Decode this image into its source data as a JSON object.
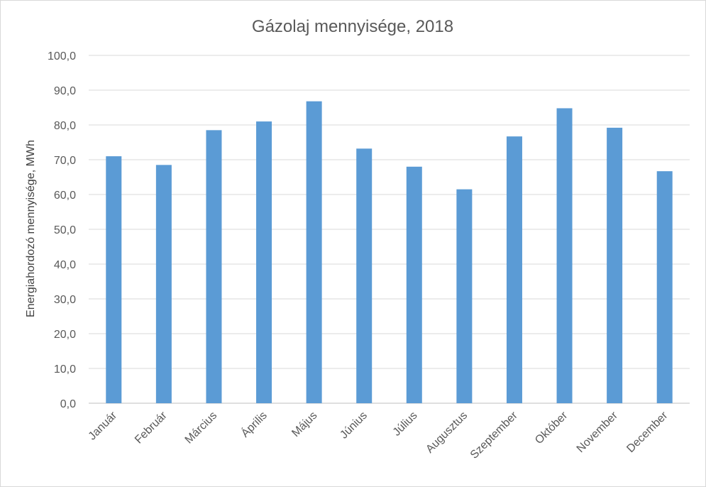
{
  "chart_data": {
    "type": "bar",
    "title": "Gázolaj mennyisége, 2018",
    "xlabel": "",
    "ylabel": "Energiahordozó mennyisége, MWh",
    "ylim": [
      0,
      100
    ],
    "yticks": [
      "0,0",
      "10,0",
      "20,0",
      "30,0",
      "40,0",
      "50,0",
      "60,0",
      "70,0",
      "80,0",
      "90,0",
      "100,0"
    ],
    "categories": [
      "Január",
      "Február",
      "Március",
      "Április",
      "Május",
      "Június",
      "Július",
      "Augusztus",
      "Szeptember",
      "Október",
      "November",
      "December"
    ],
    "values": [
      71.0,
      68.5,
      78.5,
      81.0,
      86.8,
      73.2,
      68.0,
      61.5,
      76.7,
      84.8,
      79.2,
      66.7
    ],
    "bar_color": "#5b9bd5",
    "grid": true,
    "legend": "none"
  }
}
